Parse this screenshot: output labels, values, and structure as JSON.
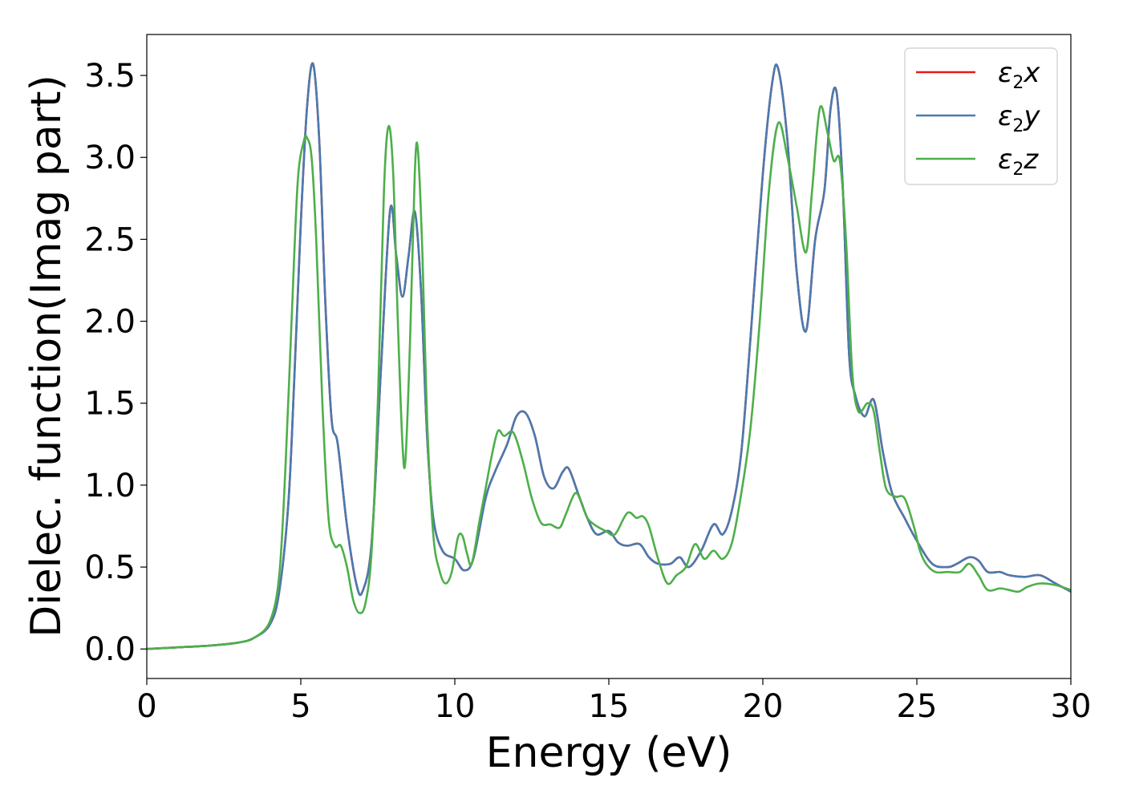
{
  "chart_data": {
    "type": "line",
    "title": "",
    "xlabel": "Energy (eV)",
    "ylabel": "Dielec. function(Imag part)",
    "xlim": [
      0,
      30
    ],
    "ylim": [
      -0.18,
      3.75
    ],
    "xticks": [
      0,
      5,
      10,
      15,
      20,
      25,
      30
    ],
    "xtick_labels": [
      "0",
      "5",
      "10",
      "15",
      "20",
      "25",
      "30"
    ],
    "yticks": [
      0.0,
      0.5,
      1.0,
      1.5,
      2.0,
      2.5,
      3.0,
      3.5
    ],
    "ytick_labels": [
      "0.0",
      "0.5",
      "1.0",
      "1.5",
      "2.0",
      "2.5",
      "3.0",
      "3.5"
    ],
    "grid": false,
    "legend_position": "top-right",
    "series": [
      {
        "name": "ε2x",
        "legend_base": "ε",
        "legend_sub": "2",
        "legend_tail": "x",
        "color": "#e41a1c",
        "x": [
          0,
          1,
          2,
          3,
          3.5,
          4,
          4.3,
          4.6,
          4.8,
          5.0,
          5.2,
          5.4,
          5.6,
          5.8,
          6.0,
          6.2,
          6.5,
          6.8,
          7.0,
          7.3,
          7.6,
          7.9,
          8.1,
          8.3,
          8.5,
          8.7,
          8.9,
          9.1,
          9.3,
          9.6,
          10.0,
          10.3,
          10.6,
          11.0,
          11.3,
          11.7,
          12.0,
          12.3,
          12.6,
          12.9,
          13.2,
          13.5,
          13.7,
          14.0,
          14.3,
          14.6,
          15.0,
          15.3,
          15.6,
          16.0,
          16.3,
          16.6,
          17.0,
          17.3,
          17.6,
          18.0,
          18.4,
          18.7,
          19.0,
          19.3,
          19.6,
          20.0,
          20.3,
          20.5,
          20.8,
          21.1,
          21.4,
          21.7,
          22.0,
          22.2,
          22.4,
          22.6,
          22.8,
          23.0,
          23.3,
          23.6,
          23.9,
          24.2,
          24.6,
          25.0,
          25.5,
          26.0,
          26.3,
          26.7,
          27.0,
          27.3,
          27.7,
          28.0,
          28.5,
          29.0,
          29.5,
          30.0
        ],
        "values": [
          0.0,
          0.01,
          0.02,
          0.04,
          0.07,
          0.15,
          0.35,
          0.9,
          1.7,
          2.6,
          3.3,
          3.57,
          3.1,
          2.1,
          1.4,
          1.25,
          0.75,
          0.4,
          0.35,
          0.65,
          1.7,
          2.68,
          2.4,
          2.15,
          2.4,
          2.67,
          2.2,
          1.3,
          0.8,
          0.6,
          0.55,
          0.48,
          0.55,
          0.92,
          1.08,
          1.25,
          1.42,
          1.44,
          1.3,
          1.05,
          0.98,
          1.08,
          1.1,
          0.95,
          0.8,
          0.7,
          0.72,
          0.65,
          0.63,
          0.64,
          0.56,
          0.52,
          0.52,
          0.56,
          0.5,
          0.6,
          0.76,
          0.7,
          0.85,
          1.2,
          1.9,
          2.9,
          3.45,
          3.54,
          3.1,
          2.3,
          1.94,
          2.5,
          2.8,
          3.3,
          3.39,
          2.8,
          1.8,
          1.55,
          1.42,
          1.52,
          1.2,
          0.95,
          0.8,
          0.66,
          0.52,
          0.5,
          0.52,
          0.56,
          0.54,
          0.47,
          0.47,
          0.45,
          0.44,
          0.45,
          0.4,
          0.35
        ]
      },
      {
        "name": "ε2y",
        "legend_base": "ε",
        "legend_sub": "2",
        "legend_tail": "y",
        "color": "#4a7aaf",
        "x": [
          0,
          1,
          2,
          3,
          3.5,
          4,
          4.3,
          4.6,
          4.8,
          5.0,
          5.2,
          5.4,
          5.6,
          5.8,
          6.0,
          6.2,
          6.5,
          6.8,
          7.0,
          7.3,
          7.6,
          7.9,
          8.1,
          8.3,
          8.5,
          8.7,
          8.9,
          9.1,
          9.3,
          9.6,
          10.0,
          10.3,
          10.6,
          11.0,
          11.3,
          11.7,
          12.0,
          12.3,
          12.6,
          12.9,
          13.2,
          13.5,
          13.7,
          14.0,
          14.3,
          14.6,
          15.0,
          15.3,
          15.6,
          16.0,
          16.3,
          16.6,
          17.0,
          17.3,
          17.6,
          18.0,
          18.4,
          18.7,
          19.0,
          19.3,
          19.6,
          20.0,
          20.3,
          20.5,
          20.8,
          21.1,
          21.4,
          21.7,
          22.0,
          22.2,
          22.4,
          22.6,
          22.8,
          23.0,
          23.3,
          23.6,
          23.9,
          24.2,
          24.6,
          25.0,
          25.5,
          26.0,
          26.3,
          26.7,
          27.0,
          27.3,
          27.7,
          28.0,
          28.5,
          29.0,
          29.5,
          30.0
        ],
        "values": [
          0.0,
          0.01,
          0.02,
          0.04,
          0.07,
          0.15,
          0.35,
          0.9,
          1.7,
          2.6,
          3.3,
          3.57,
          3.1,
          2.1,
          1.4,
          1.25,
          0.75,
          0.4,
          0.35,
          0.65,
          1.7,
          2.68,
          2.4,
          2.15,
          2.4,
          2.67,
          2.2,
          1.3,
          0.8,
          0.6,
          0.55,
          0.48,
          0.55,
          0.92,
          1.08,
          1.25,
          1.42,
          1.44,
          1.3,
          1.05,
          0.98,
          1.08,
          1.1,
          0.95,
          0.8,
          0.7,
          0.72,
          0.65,
          0.63,
          0.64,
          0.56,
          0.52,
          0.52,
          0.56,
          0.5,
          0.6,
          0.76,
          0.7,
          0.85,
          1.2,
          1.9,
          2.9,
          3.45,
          3.54,
          3.1,
          2.3,
          1.94,
          2.5,
          2.8,
          3.3,
          3.39,
          2.8,
          1.8,
          1.55,
          1.42,
          1.52,
          1.2,
          0.95,
          0.8,
          0.66,
          0.52,
          0.5,
          0.52,
          0.56,
          0.54,
          0.47,
          0.47,
          0.45,
          0.44,
          0.45,
          0.4,
          0.35
        ]
      },
      {
        "name": "ε2z",
        "legend_base": "ε",
        "legend_sub": "2",
        "legend_tail": "z",
        "color": "#4daf4a",
        "x": [
          0,
          1,
          2,
          3,
          3.5,
          4,
          4.3,
          4.5,
          4.7,
          4.9,
          5.1,
          5.2,
          5.35,
          5.5,
          5.7,
          5.9,
          6.1,
          6.3,
          6.5,
          6.7,
          6.9,
          7.1,
          7.3,
          7.5,
          7.7,
          7.85,
          8.0,
          8.15,
          8.3,
          8.4,
          8.55,
          8.7,
          8.8,
          8.95,
          9.1,
          9.3,
          9.5,
          9.7,
          9.9,
          10.1,
          10.25,
          10.4,
          10.55,
          10.8,
          11.0,
          11.2,
          11.4,
          11.6,
          11.9,
          12.2,
          12.5,
          12.8,
          13.1,
          13.4,
          13.6,
          13.9,
          14.1,
          14.3,
          14.6,
          14.9,
          15.2,
          15.6,
          15.9,
          16.1,
          16.3,
          16.6,
          16.9,
          17.2,
          17.5,
          17.8,
          18.1,
          18.4,
          18.7,
          19.0,
          19.3,
          19.6,
          19.9,
          20.2,
          20.5,
          20.8,
          21.1,
          21.4,
          21.6,
          21.85,
          22.1,
          22.3,
          22.5,
          22.7,
          22.9,
          23.1,
          23.4,
          23.6,
          23.8,
          24.0,
          24.3,
          24.6,
          24.9,
          25.1,
          25.3,
          25.6,
          26.0,
          26.4,
          26.7,
          27.0,
          27.3,
          27.7,
          28.0,
          28.3,
          28.6,
          29.0,
          29.5,
          30.0
        ],
        "values": [
          0.0,
          0.01,
          0.02,
          0.04,
          0.07,
          0.17,
          0.45,
          1.1,
          2.0,
          2.85,
          3.1,
          3.12,
          3.0,
          2.5,
          1.5,
          0.8,
          0.63,
          0.63,
          0.5,
          0.3,
          0.22,
          0.28,
          0.6,
          1.5,
          2.8,
          3.19,
          2.9,
          2.0,
          1.25,
          1.16,
          1.9,
          2.9,
          3.05,
          2.4,
          1.4,
          0.7,
          0.48,
          0.4,
          0.47,
          0.68,
          0.69,
          0.58,
          0.52,
          0.78,
          0.98,
          1.18,
          1.33,
          1.3,
          1.32,
          1.15,
          0.92,
          0.77,
          0.76,
          0.74,
          0.82,
          0.95,
          0.9,
          0.8,
          0.75,
          0.72,
          0.7,
          0.83,
          0.8,
          0.81,
          0.75,
          0.55,
          0.4,
          0.45,
          0.5,
          0.64,
          0.55,
          0.6,
          0.55,
          0.65,
          0.95,
          1.35,
          2.0,
          2.8,
          3.21,
          3.0,
          2.7,
          2.42,
          2.8,
          3.3,
          3.15,
          2.98,
          2.98,
          2.5,
          1.7,
          1.45,
          1.5,
          1.45,
          1.2,
          0.98,
          0.93,
          0.92,
          0.75,
          0.6,
          0.52,
          0.47,
          0.47,
          0.47,
          0.52,
          0.45,
          0.36,
          0.37,
          0.36,
          0.35,
          0.38,
          0.4,
          0.39,
          0.36
        ]
      }
    ]
  }
}
